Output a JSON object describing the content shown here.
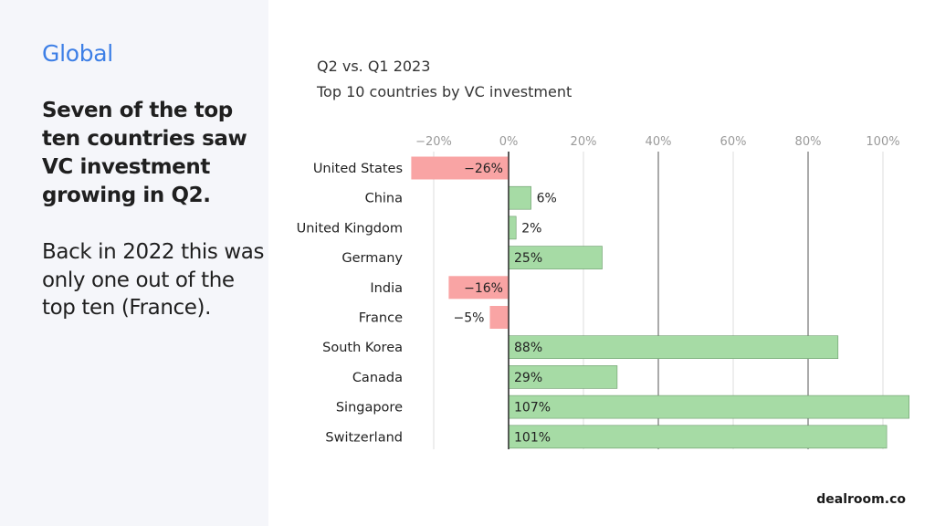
{
  "panel": {
    "section_label": "Global",
    "headline": "Seven of the top ten countries saw VC investment growing in Q2.",
    "body": "Back in 2022 this was only one out of the top ten (France)."
  },
  "brand": "dealroom.co",
  "colors": {
    "positive": "#a6dba5",
    "negative": "#f9a4a4",
    "accent": "#3d7fe6"
  },
  "chart_data": {
    "type": "bar",
    "orientation": "horizontal",
    "title": "Q2 vs. Q1 2023",
    "subtitle": "Top 10 countries by VC investment",
    "categories": [
      "United States",
      "China",
      "United Kingdom",
      "Germany",
      "India",
      "France",
      "South Korea",
      "Canada",
      "Singapore",
      "Switzerland"
    ],
    "values": [
      -26,
      6,
      2,
      25,
      -16,
      -5,
      88,
      29,
      107,
      101
    ],
    "labels": [
      "−26%",
      "6%",
      "2%",
      "25%",
      "−16%",
      "−5%",
      "88%",
      "29%",
      "107%",
      "101%"
    ],
    "x_ticks": [
      -20,
      0,
      20,
      40,
      60,
      80,
      100
    ],
    "x_tick_labels": [
      "−20%",
      "0%",
      "20%",
      "40%",
      "60%",
      "80%",
      "100%"
    ],
    "xlim": [
      -26,
      107
    ],
    "grid": true,
    "unit": "%"
  }
}
